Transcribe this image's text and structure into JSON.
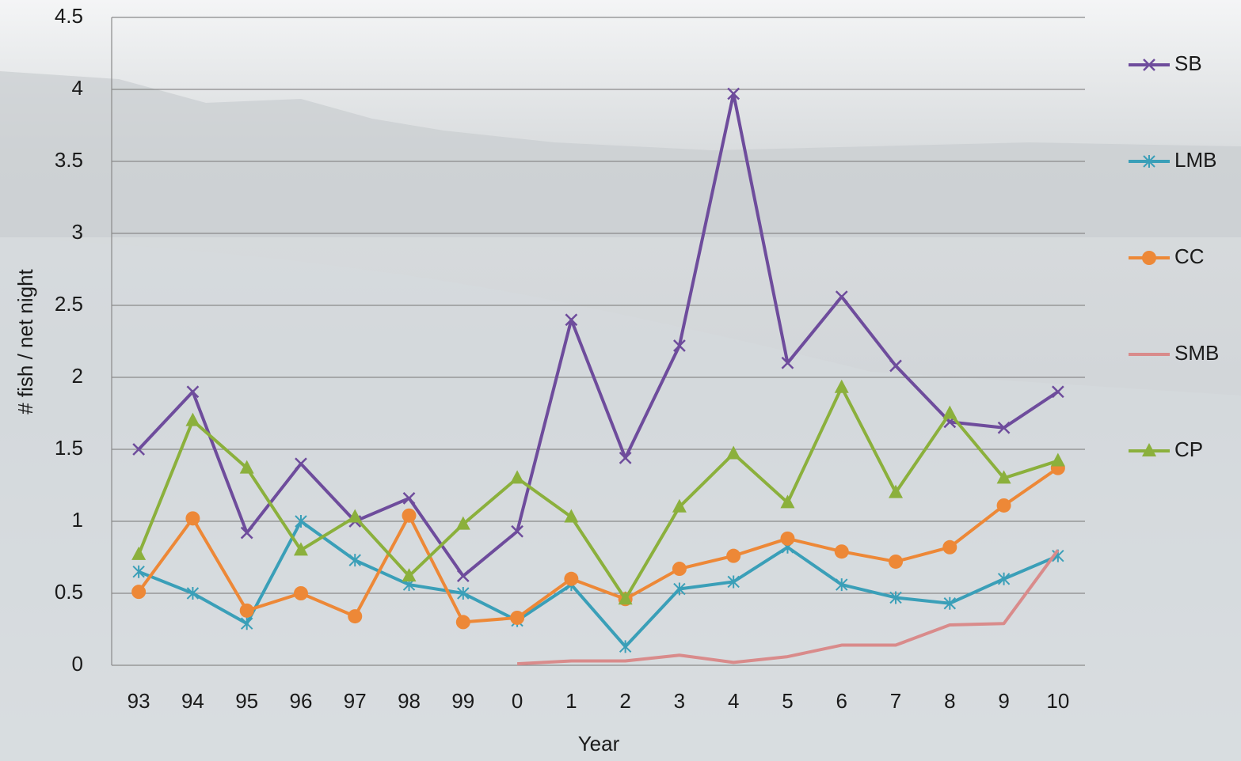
{
  "chart_data": {
    "type": "line",
    "x_label": "Year",
    "y_label": "# fish / net night",
    "categories": [
      "93",
      "94",
      "95",
      "96",
      "97",
      "98",
      "99",
      "0",
      "1",
      "2",
      "3",
      "4",
      "5",
      "6",
      "7",
      "8",
      "9",
      "10"
    ],
    "ylim": [
      0,
      4.5
    ],
    "yticks": [
      0,
      0.5,
      1,
      1.5,
      2,
      2.5,
      3,
      3.5,
      4,
      4.5
    ],
    "grid": true,
    "legend": "right",
    "series": [
      {
        "name": "SB",
        "color": "#6e4c9c",
        "marker": "x",
        "values": [
          1.5,
          1.9,
          0.92,
          1.4,
          1.0,
          1.16,
          0.62,
          0.93,
          2.4,
          1.44,
          2.22,
          3.97,
          2.1,
          2.56,
          2.08,
          1.69,
          1.65,
          1.9
        ]
      },
      {
        "name": "LMB",
        "color": "#3a9fb8",
        "marker": "asterisk",
        "values": [
          0.65,
          0.5,
          0.29,
          1.0,
          0.73,
          0.56,
          0.5,
          0.31,
          0.56,
          0.13,
          0.53,
          0.58,
          0.82,
          0.56,
          0.47,
          0.43,
          0.6,
          0.76
        ]
      },
      {
        "name": "CC",
        "color": "#ed8837",
        "marker": "circle",
        "values": [
          0.51,
          1.02,
          0.38,
          0.5,
          0.34,
          1.04,
          0.3,
          0.33,
          0.6,
          0.46,
          0.67,
          0.76,
          0.88,
          0.79,
          0.72,
          0.82,
          1.11,
          1.37
        ]
      },
      {
        "name": "SMB",
        "color": "#d98b8b",
        "marker": "none",
        "values": [
          null,
          null,
          null,
          null,
          null,
          null,
          null,
          0.01,
          0.03,
          0.03,
          0.07,
          0.02,
          0.06,
          0.14,
          0.14,
          0.28,
          0.29,
          0.8
        ]
      },
      {
        "name": "CP",
        "color": "#8bb03c",
        "marker": "triangle",
        "values": [
          0.77,
          1.7,
          1.37,
          0.8,
          1.03,
          0.62,
          0.98,
          1.3,
          1.03,
          0.46,
          1.1,
          1.47,
          1.13,
          1.93,
          1.2,
          1.75,
          1.3,
          1.42
        ]
      }
    ]
  }
}
